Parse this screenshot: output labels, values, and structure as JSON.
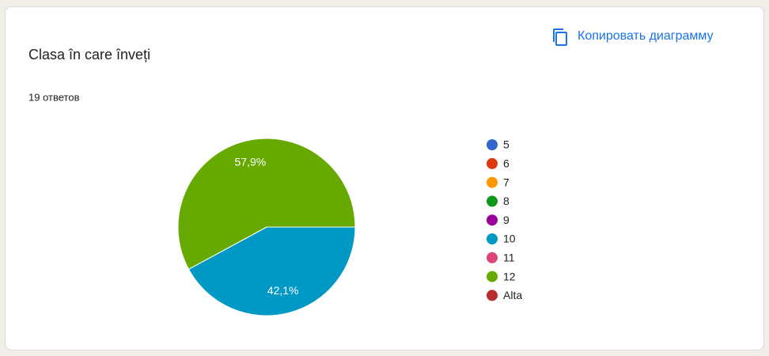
{
  "copy_button": "Копировать диаграмму",
  "chart_data": {
    "type": "pie",
    "title": "Clasa în care învеți",
    "subtitle": "19 ответов",
    "categories": [
      "5",
      "6",
      "7",
      "8",
      "9",
      "10",
      "11",
      "12",
      "Alta"
    ],
    "values": [
      0,
      0,
      0,
      0,
      0,
      42.1,
      0,
      57.9,
      0
    ],
    "value_labels": [
      null,
      null,
      null,
      null,
      null,
      "42,1%",
      null,
      "57,9%",
      null
    ],
    "colors": [
      "#3366cc",
      "#dc3912",
      "#ff9900",
      "#109618",
      "#990099",
      "#0099c6",
      "#dd4477",
      "#66aa00",
      "#b82e2e"
    ],
    "start_angle": 90,
    "legend": "right"
  }
}
